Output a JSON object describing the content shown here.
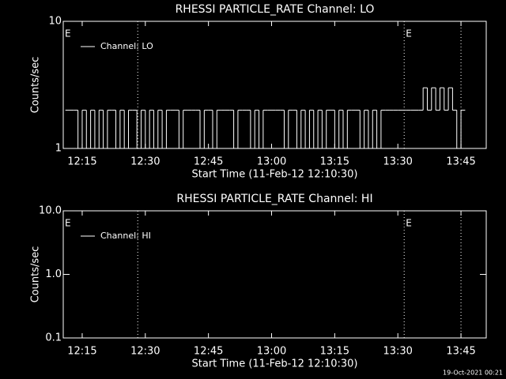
{
  "charts": [
    {
      "type": "line",
      "title": "RHESSI PARTICLE_RATE Channel: LO",
      "xlabel": "Start Time (11-Feb-12 12:10:30)",
      "ylabel": "Counts/sec",
      "log_y": true,
      "legend": "upper left",
      "xlim": [
        730.5,
        831
      ],
      "xticks": [
        {
          "value": 735,
          "label": "12:15"
        },
        {
          "value": 750,
          "label": "12:30"
        },
        {
          "value": 765,
          "label": "12:45"
        },
        {
          "value": 780,
          "label": "13:00"
        },
        {
          "value": 795,
          "label": "13:15"
        },
        {
          "value": 810,
          "label": "13:30"
        },
        {
          "value": 825,
          "label": "13:45"
        }
      ],
      "ylim": [
        1,
        10
      ],
      "yticks": [
        1,
        10
      ],
      "vlines": [
        748.2,
        811.5,
        825
      ],
      "annotations": [
        {
          "x": 730.5,
          "text": "E"
        },
        {
          "x": 811.5,
          "text": "E"
        }
      ],
      "series": [
        {
          "name": "Channel: LO",
          "color": "#ffffff",
          "x": [
            731,
            732,
            733,
            734,
            735,
            736,
            737,
            738,
            739,
            740,
            741,
            742,
            743,
            744,
            745,
            746,
            747,
            748,
            749,
            750,
            751,
            752,
            753,
            754,
            755,
            756,
            757,
            758,
            759,
            760,
            761,
            762,
            763,
            764,
            765,
            766,
            767,
            768,
            769,
            770,
            771,
            772,
            773,
            774,
            775,
            776,
            777,
            778,
            779,
            780,
            781,
            782,
            783,
            784,
            785,
            786,
            787,
            788,
            789,
            790,
            791,
            792,
            793,
            794,
            795,
            796,
            797,
            798,
            799,
            800,
            801,
            802,
            803,
            804,
            805,
            806,
            807,
            808,
            809,
            810,
            811,
            812,
            813,
            814,
            815,
            816,
            817,
            818,
            819,
            820,
            821,
            822,
            823,
            824,
            825
          ],
          "values": [
            2,
            2,
            2,
            1,
            2,
            1,
            2,
            1,
            2,
            1,
            2,
            2,
            1,
            2,
            1,
            2,
            2,
            1,
            2,
            1,
            2,
            1,
            2,
            1,
            2,
            2,
            2,
            1,
            2,
            2,
            2,
            2,
            1,
            2,
            2,
            1,
            2,
            2,
            2,
            2,
            1,
            2,
            2,
            2,
            1,
            2,
            1,
            2,
            2,
            2,
            2,
            2,
            1,
            2,
            2,
            1,
            2,
            1,
            2,
            1,
            2,
            1,
            2,
            2,
            1,
            2,
            1,
            2,
            2,
            2,
            1,
            2,
            1,
            2,
            1,
            2,
            2,
            2,
            2,
            2,
            2,
            2,
            2,
            2,
            2,
            3,
            2,
            3,
            2,
            3,
            2,
            3,
            2,
            1,
            2
          ]
        }
      ]
    },
    {
      "type": "line",
      "title": "RHESSI PARTICLE_RATE Channel: HI",
      "xlabel": "Start Time (11-Feb-12 12:10:30)",
      "ylabel": "Counts/sec",
      "log_y": true,
      "legend": "upper left",
      "xlim": [
        730.5,
        831
      ],
      "xticks": [
        {
          "value": 735,
          "label": "12:15"
        },
        {
          "value": 750,
          "label": "12:30"
        },
        {
          "value": 765,
          "label": "12:45"
        },
        {
          "value": 780,
          "label": "13:00"
        },
        {
          "value": 795,
          "label": "13:15"
        },
        {
          "value": 810,
          "label": "13:30"
        },
        {
          "value": 825,
          "label": "13:45"
        }
      ],
      "ylim": [
        0.1,
        10
      ],
      "yticks": [
        0.1,
        {
          "value": 1,
          "label": "1.0"
        },
        {
          "value": 10,
          "label": "10.0"
        }
      ],
      "vlines": [
        748.2,
        811.5,
        825
      ],
      "annotations": [
        {
          "x": 730.5,
          "text": "E"
        },
        {
          "x": 811.5,
          "text": "E"
        }
      ],
      "series": [
        {
          "name": "Channel: HI",
          "color": "#ffffff",
          "x": [],
          "values": []
        }
      ]
    }
  ],
  "footer": "19-Oct-2021 00:21"
}
